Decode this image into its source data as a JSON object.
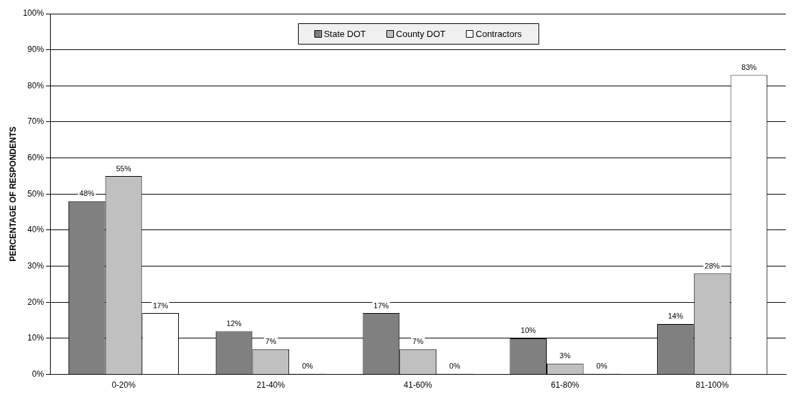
{
  "chart_data": {
    "type": "bar",
    "ylabel": "PERCENTAGE OF RESPONDENTS",
    "categories": [
      "0-20%",
      "21-40%",
      "41-60%",
      "61-80%",
      "81-100%"
    ],
    "series": [
      {
        "name": "State DOT",
        "color": "#808080",
        "values": [
          48,
          12,
          17,
          10,
          14
        ],
        "value_labels": [
          "48%",
          "12%",
          "17%",
          "10%",
          "14%"
        ]
      },
      {
        "name": "County DOT",
        "color": "#c0c0c0",
        "values": [
          55,
          7,
          7,
          3,
          28
        ],
        "value_labels": [
          "55%",
          "7%",
          "7%",
          "3%",
          "28%"
        ]
      },
      {
        "name": "Contractors",
        "color": "#ffffff",
        "values": [
          17,
          0,
          0,
          0,
          83
        ],
        "value_labels": [
          "17%",
          "0%",
          "0%",
          "0%",
          "83%"
        ]
      }
    ],
    "ylim": [
      0,
      100
    ],
    "yticks": [
      {
        "value": 0,
        "label": "0%"
      },
      {
        "value": 10,
        "label": "10%"
      },
      {
        "value": 20,
        "label": "20%"
      },
      {
        "value": 30,
        "label": "30%"
      },
      {
        "value": 40,
        "label": "40%"
      },
      {
        "value": 50,
        "label": "50%"
      },
      {
        "value": 60,
        "label": "60%"
      },
      {
        "value": 70,
        "label": "70%"
      },
      {
        "value": 80,
        "label": "80%"
      },
      {
        "value": 90,
        "label": "90%"
      },
      {
        "value": 100,
        "label": "100%"
      }
    ],
    "grid": "y",
    "legend": "top"
  }
}
